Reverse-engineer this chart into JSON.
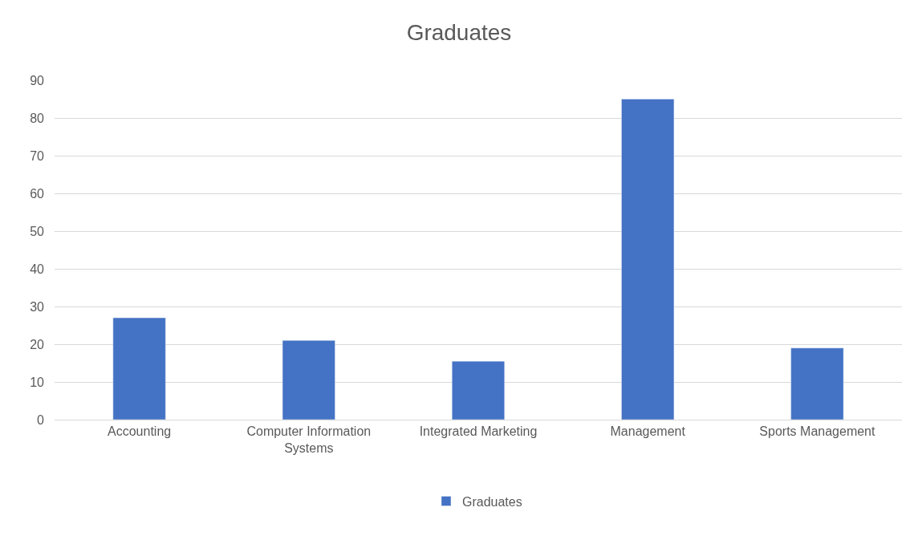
{
  "chart_data": {
    "type": "bar",
    "title": "Graduates",
    "categories": [
      "Accounting",
      "Computer Information Systems",
      "Integrated Marketing",
      "Management",
      "Sports Management"
    ],
    "series": [
      {
        "name": "Graduates",
        "color": "#4472c4",
        "values": [
          27,
          21,
          15.5,
          85,
          19
        ]
      }
    ],
    "ylim": [
      0,
      90
    ],
    "yticks": [
      0,
      10,
      20,
      30,
      40,
      50,
      60,
      70,
      80,
      90
    ],
    "grid": "y",
    "legend": "bottom"
  }
}
